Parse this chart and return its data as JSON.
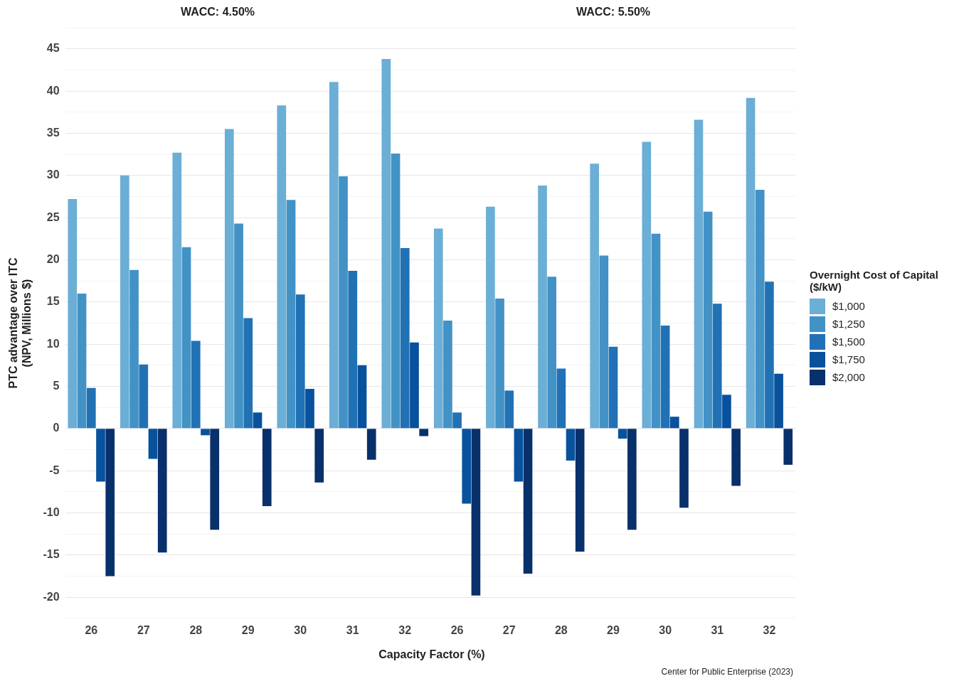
{
  "chart_data": [
    {
      "type": "bar",
      "title": "WACC: 4.50%",
      "xlabel": "Capacity Factor (%)",
      "ylabel": "PTC advantage over ITC\n(NPV, Millions $)",
      "categories": [
        "26",
        "27",
        "28",
        "29",
        "30",
        "31",
        "32"
      ],
      "series": [
        {
          "color": "#6baed6",
          "values": [
            27.2,
            30.0,
            32.7,
            35.5,
            38.3,
            41.1,
            43.8
          ]
        },
        {
          "color": "#4292c6",
          "values": [
            16.0,
            18.8,
            21.5,
            24.3,
            27.1,
            29.9,
            32.6
          ]
        },
        {
          "color": "#2171b5",
          "values": [
            4.8,
            7.6,
            10.4,
            13.1,
            15.9,
            18.7,
            21.4
          ]
        },
        {
          "color": "#08519c",
          "values": [
            -6.3,
            -3.6,
            -0.8,
            1.9,
            4.7,
            7.5,
            10.2
          ]
        },
        {
          "color": "#08306b",
          "values": [
            -17.5,
            -14.7,
            -12.0,
            -9.2,
            -6.4,
            -3.7,
            -0.9
          ]
        }
      ],
      "ylim": [
        -22.5,
        47.5
      ],
      "yticks": [
        {
          "value": -22.5,
          "label": null
        },
        -20,
        {
          "value": -17.5,
          "label": null
        },
        -15,
        {
          "value": -12.5,
          "label": null
        },
        -10,
        {
          "value": -7.5,
          "label": null
        },
        -5,
        {
          "value": -2.5,
          "label": null
        },
        0,
        {
          "value": 2.5,
          "label": null
        },
        5,
        {
          "value": 7.5,
          "label": null
        },
        10,
        {
          "value": 12.5,
          "label": null
        },
        15,
        {
          "value": 17.5,
          "label": null
        },
        20,
        {
          "value": 22.5,
          "label": null
        },
        25,
        {
          "value": 27.5,
          "label": null
        },
        30,
        {
          "value": 32.5,
          "label": null
        },
        35,
        {
          "value": 37.5,
          "label": null
        },
        40,
        {
          "value": 42.5,
          "label": null
        },
        45
      ],
      "grid": "y"
    },
    {
      "type": "bar",
      "title": "WACC: 5.50%",
      "legend_title": "Overnight Cost of Capital ($/kW)",
      "categories": [
        "26",
        "27",
        "28",
        "29",
        "30",
        "31",
        "32"
      ],
      "series": [
        {
          "name": "$1,000",
          "color": "#6baed6",
          "values": [
            23.7,
            26.3,
            28.8,
            31.4,
            34.0,
            36.6,
            39.2
          ]
        },
        {
          "name": "$1,250",
          "color": "#4292c6",
          "values": [
            12.8,
            15.4,
            18.0,
            20.5,
            23.1,
            25.7,
            28.3
          ]
        },
        {
          "name": "$1,500",
          "color": "#2171b5",
          "values": [
            1.9,
            4.5,
            7.1,
            9.7,
            12.2,
            14.8,
            17.4
          ]
        },
        {
          "name": "$1,750",
          "color": "#08519c",
          "values": [
            -8.9,
            -6.3,
            -3.8,
            -1.2,
            1.4,
            4.0,
            6.5
          ]
        },
        {
          "name": "$2,000",
          "color": "#08306b",
          "values": [
            -19.8,
            -17.2,
            -14.6,
            -12.0,
            -9.4,
            -6.8,
            -4.3
          ]
        }
      ],
      "ylim": [
        -22.5,
        47.5
      ],
      "yticks": [
        {
          "value": -22.5,
          "label": null
        },
        -20,
        {
          "value": -17.5,
          "label": null
        },
        -15,
        {
          "value": -12.5,
          "label": null
        },
        -10,
        {
          "value": -7.5,
          "label": null
        },
        -5,
        {
          "value": -2.5,
          "label": null
        },
        0,
        {
          "value": 2.5,
          "label": null
        },
        5,
        {
          "value": 7.5,
          "label": null
        },
        10,
        {
          "value": 12.5,
          "label": null
        },
        15,
        {
          "value": 17.5,
          "label": null
        },
        20,
        {
          "value": 22.5,
          "label": null
        },
        25,
        {
          "value": 27.5,
          "label": null
        },
        30,
        {
          "value": 32.5,
          "label": null
        },
        35,
        {
          "value": 37.5,
          "label": null
        },
        40,
        {
          "value": 42.5,
          "label": null
        },
        45
      ],
      "grid": "y",
      "tick_labels": "x",
      "legend": "right",
      "annotations": [
        "Center for Public Enterprise (2023)"
      ]
    }
  ]
}
